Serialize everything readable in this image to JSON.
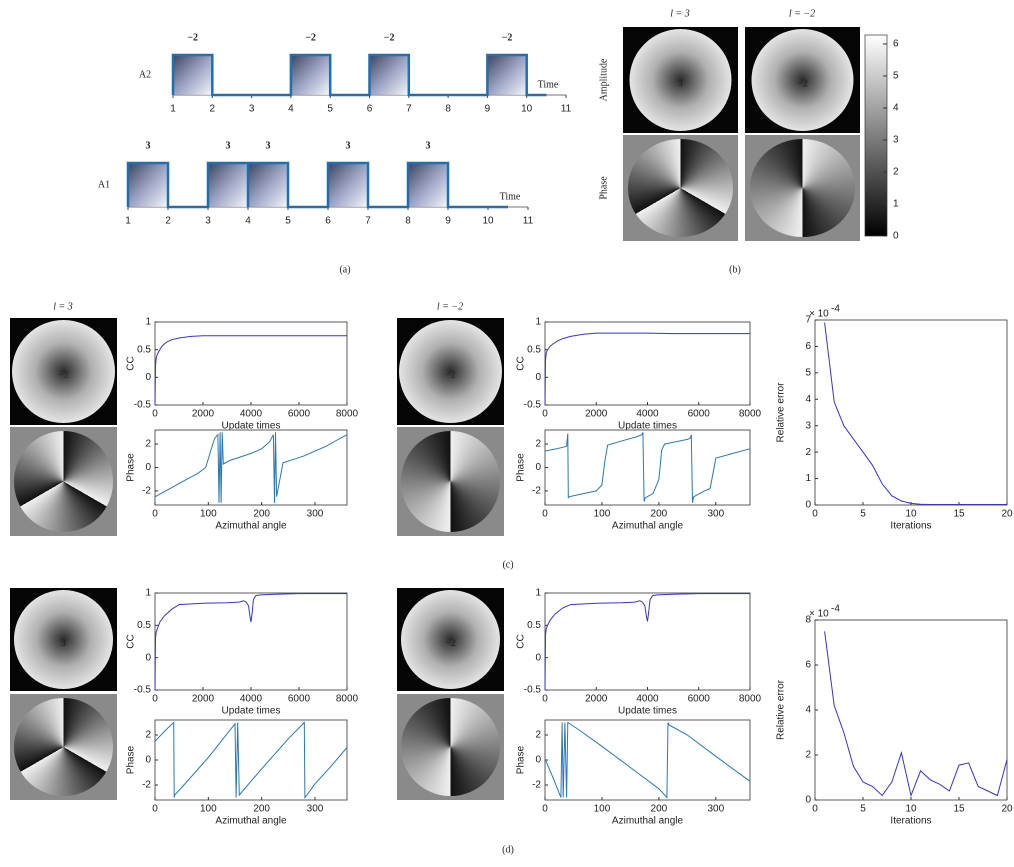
{
  "panel_labels": [
    "(a)",
    "(b)",
    "(c)",
    "(d)"
  ],
  "timing": {
    "rows": [
      {
        "label": "A2",
        "axis_label": "Time",
        "ticks": [
          1,
          2,
          3,
          4,
          5,
          6,
          7,
          8,
          9,
          10,
          11
        ],
        "pulses": [
          {
            "start": 1,
            "end": 2,
            "label": "−2"
          },
          {
            "start": 4,
            "end": 5,
            "label": "−2"
          },
          {
            "start": 6,
            "end": 7,
            "label": "−2"
          },
          {
            "start": 9,
            "end": 10,
            "label": "−2"
          }
        ]
      },
      {
        "label": "A1",
        "axis_label": "Time",
        "ticks": [
          1,
          2,
          3,
          4,
          5,
          6,
          7,
          8,
          9,
          10,
          11
        ],
        "pulses": [
          {
            "start": 1,
            "end": 2,
            "label": "3"
          },
          {
            "start": 3,
            "end": 4,
            "label": "3"
          },
          {
            "start": 4,
            "end": 5,
            "label": "3"
          },
          {
            "start": 6,
            "end": 7,
            "label": "3"
          },
          {
            "start": 8,
            "end": 9,
            "label": "3"
          }
        ]
      }
    ]
  },
  "modes": {
    "headers": [
      "l = 3",
      "l = −2"
    ],
    "row_labels": [
      "Amplitude",
      "Phase"
    ],
    "image_digits": [
      "3",
      "−2"
    ],
    "colorbar": {
      "ylim": [
        0,
        6.28
      ],
      "yticks": [
        0,
        1,
        2,
        3,
        4,
        5,
        6
      ]
    }
  },
  "results_c": {
    "headers": [
      "l = 3",
      "l = −2"
    ],
    "image_digits": [
      "−2",
      "−2"
    ]
  },
  "results_d": {
    "image_digits": [
      "3",
      "−2"
    ]
  },
  "chart_data": [
    {
      "type": "line",
      "xlabel": "Update times",
      "ylabel": "CC",
      "xlim": [
        0,
        8000
      ],
      "xticks": [
        0,
        2000,
        4000,
        6000,
        8000
      ],
      "ylim": [
        -0.5,
        1
      ],
      "yticks": [
        -0.5,
        0,
        0.5,
        1
      ],
      "x": [
        0,
        20,
        50,
        100,
        200,
        300,
        500,
        700,
        1000,
        1500,
        2000,
        3000,
        4000,
        5000,
        6000,
        7000,
        8000
      ],
      "series": [
        {
          "color": "#3434d4",
          "values": [
            -0.5,
            0.2,
            0.35,
            0.42,
            0.5,
            0.57,
            0.64,
            0.68,
            0.71,
            0.74,
            0.75,
            0.75,
            0.75,
            0.75,
            0.75,
            0.75,
            0.75
          ]
        }
      ]
    },
    {
      "type": "line",
      "xlabel": "Azimuthal angle",
      "ylabel": "Phase",
      "xlim": [
        0,
        360
      ],
      "xticks": [
        0,
        100,
        200,
        300
      ],
      "ylim": [
        -3.2,
        3.2
      ],
      "yticks": [
        -2,
        0,
        2
      ],
      "x": [
        0,
        20,
        40,
        60,
        80,
        95,
        105,
        112,
        118,
        120,
        122,
        124,
        126,
        128,
        140,
        160,
        180,
        200,
        215,
        222,
        224,
        226,
        228,
        240,
        260,
        280,
        300,
        320,
        340,
        360
      ],
      "series": [
        {
          "color": "#2a78b4",
          "values": [
            -2.5,
            -2,
            -1.5,
            -1,
            -0.5,
            0,
            1.5,
            2.5,
            2.8,
            -3,
            3,
            -3,
            3,
            0.3,
            0.6,
            0.9,
            1.2,
            1.6,
            2.2,
            2.8,
            -3,
            3,
            -2.5,
            0.4,
            0.7,
            1,
            1.4,
            1.8,
            2.3,
            2.8
          ]
        }
      ]
    },
    {
      "type": "line",
      "xlabel": "Update times",
      "ylabel": "CC",
      "xlim": [
        0,
        8000
      ],
      "xticks": [
        0,
        2000,
        4000,
        6000,
        8000
      ],
      "ylim": [
        -0.5,
        1
      ],
      "yticks": [
        -0.5,
        0,
        0.5,
        1
      ],
      "x": [
        0,
        20,
        50,
        100,
        200,
        300,
        500,
        700,
        1000,
        1500,
        2000,
        3000,
        4000,
        5000,
        6000,
        7000,
        8000
      ],
      "series": [
        {
          "color": "#3434d4",
          "values": [
            -0.5,
            0.3,
            0.45,
            0.5,
            0.56,
            0.6,
            0.66,
            0.7,
            0.74,
            0.78,
            0.8,
            0.8,
            0.8,
            0.79,
            0.79,
            0.79,
            0.79
          ]
        }
      ]
    },
    {
      "type": "line",
      "xlabel": "Azimuthal angle",
      "ylabel": "Phase",
      "xlim": [
        0,
        360
      ],
      "xticks": [
        0,
        100,
        200,
        300
      ],
      "ylim": [
        -3.2,
        3.2
      ],
      "yticks": [
        -2,
        0,
        2
      ],
      "x": [
        0,
        20,
        38,
        40,
        41,
        42,
        60,
        90,
        100,
        105,
        110,
        130,
        160,
        170,
        172,
        174,
        176,
        190,
        200,
        205,
        210,
        230,
        250,
        255,
        257,
        259,
        261,
        280,
        290,
        295,
        300,
        330,
        360
      ],
      "series": [
        {
          "color": "#2a78b4",
          "values": [
            1.4,
            1.6,
            1.8,
            2.9,
            -2.6,
            -2.5,
            -2.3,
            -2,
            -1.5,
            0.5,
            1.9,
            2.2,
            2.6,
            2.8,
            3,
            -2.9,
            -2.6,
            -2.2,
            -1,
            1.5,
            2,
            2.2,
            2.4,
            2.5,
            2.8,
            -3,
            -2.5,
            -2,
            -1.8,
            -0.5,
            0.8,
            1.2,
            1.6
          ]
        }
      ]
    },
    {
      "type": "line",
      "xlabel": "Iterations",
      "ylabel": "Relative error",
      "y_scale_label": {
        "base": "× 10",
        "exponent": "-4"
      },
      "xlim": [
        0,
        20
      ],
      "xticks": [
        0,
        5,
        10,
        15,
        20
      ],
      "ylim": [
        0,
        7
      ],
      "yticks": [
        0,
        1,
        2,
        3,
        4,
        5,
        6,
        7
      ],
      "x": [
        1,
        2,
        3,
        4,
        5,
        6,
        7,
        8,
        9,
        10,
        11,
        12,
        13,
        14,
        15,
        16,
        17,
        18,
        19,
        20
      ],
      "series": [
        {
          "color": "#3434d4",
          "values": [
            6.9,
            3.9,
            3.0,
            2.5,
            2.0,
            1.5,
            0.8,
            0.35,
            0.15,
            0.06,
            0.03,
            0.02,
            0.02,
            0.02,
            0.02,
            0.02,
            0.02,
            0.02,
            0.02,
            0.02
          ]
        }
      ]
    },
    {
      "type": "line",
      "xlabel": "Update times",
      "ylabel": "CC",
      "xlim": [
        0,
        8000
      ],
      "xticks": [
        0,
        2000,
        4000,
        6000,
        8000
      ],
      "ylim": [
        -0.5,
        1
      ],
      "yticks": [
        -0.5,
        0,
        0.5,
        1
      ],
      "x": [
        0,
        20,
        50,
        100,
        200,
        400,
        700,
        1000,
        2000,
        3000,
        3500,
        3700,
        3800,
        3900,
        3950,
        4000,
        4050,
        4100,
        4200,
        4400,
        5000,
        6000,
        7000,
        8000
      ],
      "series": [
        {
          "color": "#3434d4",
          "values": [
            -0.5,
            0.3,
            0.4,
            0.45,
            0.55,
            0.65,
            0.75,
            0.82,
            0.84,
            0.85,
            0.86,
            0.88,
            0.86,
            0.8,
            0.65,
            0.55,
            0.7,
            0.9,
            0.96,
            0.97,
            0.98,
            0.99,
            0.99,
            0.99
          ]
        }
      ]
    },
    {
      "type": "line",
      "xlabel": "Azimuthal angle",
      "ylabel": "Phase",
      "xlim": [
        0,
        360
      ],
      "xticks": [
        0,
        100,
        200,
        300
      ],
      "ylim": [
        -3.2,
        3.2
      ],
      "yticks": [
        -2,
        0,
        2
      ],
      "x": [
        0,
        20,
        35,
        36,
        37,
        50,
        100,
        150,
        152,
        155,
        158,
        200,
        250,
        280,
        281,
        285,
        300,
        330,
        360
      ],
      "series": [
        {
          "color": "#2a78b4",
          "values": [
            1.5,
            2.4,
            3,
            -3,
            -2.8,
            -2.2,
            0.2,
            2.9,
            -3,
            3,
            -2.8,
            -0.7,
            1.7,
            3,
            -3,
            -2.8,
            -1.9,
            -0.5,
            1
          ]
        }
      ]
    },
    {
      "type": "line",
      "xlabel": "Update times",
      "ylabel": "CC",
      "xlim": [
        0,
        8000
      ],
      "xticks": [
        0,
        2000,
        4000,
        6000,
        8000
      ],
      "ylim": [
        -0.5,
        1
      ],
      "yticks": [
        -0.5,
        0,
        0.5,
        1
      ],
      "x": [
        0,
        20,
        50,
        100,
        200,
        400,
        700,
        1000,
        2000,
        3000,
        3500,
        3700,
        3800,
        3900,
        3950,
        4000,
        4050,
        4100,
        4200,
        4400,
        5000,
        6000,
        7000,
        8000
      ],
      "series": [
        {
          "color": "#3434d4",
          "values": [
            -0.5,
            0.35,
            0.45,
            0.5,
            0.58,
            0.68,
            0.77,
            0.82,
            0.84,
            0.85,
            0.86,
            0.88,
            0.86,
            0.8,
            0.66,
            0.56,
            0.72,
            0.9,
            0.96,
            0.97,
            0.98,
            0.99,
            0.99,
            0.99
          ]
        }
      ]
    },
    {
      "type": "line",
      "xlabel": "Azimuthal angle",
      "ylabel": "Phase",
      "xlim": [
        0,
        360
      ],
      "xticks": [
        0,
        100,
        200,
        300
      ],
      "ylim": [
        -3.2,
        3.2
      ],
      "yticks": [
        -2,
        0,
        2
      ],
      "x": [
        0,
        15,
        28,
        30,
        32,
        35,
        38,
        40,
        60,
        100,
        150,
        200,
        214,
        216,
        218,
        250,
        300,
        360
      ],
      "series": [
        {
          "color": "#2a78b4",
          "values": [
            0.1,
            -1.5,
            -3,
            3,
            -3,
            3,
            -3,
            3,
            2.4,
            1.1,
            -0.6,
            -2.3,
            -3,
            3,
            2.8,
            2,
            0.3,
            -1.7
          ]
        }
      ]
    },
    {
      "type": "line",
      "xlabel": "Iterations",
      "ylabel": "Relative error",
      "y_scale_label": {
        "base": "× 10",
        "exponent": "-4"
      },
      "xlim": [
        0,
        20
      ],
      "xticks": [
        0,
        5,
        10,
        15,
        20
      ],
      "ylim": [
        0,
        8
      ],
      "yticks": [
        0,
        2,
        4,
        6,
        8
      ],
      "x": [
        1,
        2,
        3,
        4,
        5,
        6,
        7,
        8,
        9,
        10,
        11,
        12,
        13,
        14,
        15,
        16,
        17,
        18,
        19,
        20
      ],
      "series": [
        {
          "color": "#3434d4",
          "values": [
            7.5,
            4.2,
            3.0,
            1.5,
            0.8,
            0.6,
            0.2,
            0.8,
            2.1,
            0.2,
            1.3,
            0.9,
            0.7,
            0.4,
            1.55,
            1.65,
            0.6,
            0.4,
            0.2,
            1.8
          ]
        }
      ]
    }
  ]
}
